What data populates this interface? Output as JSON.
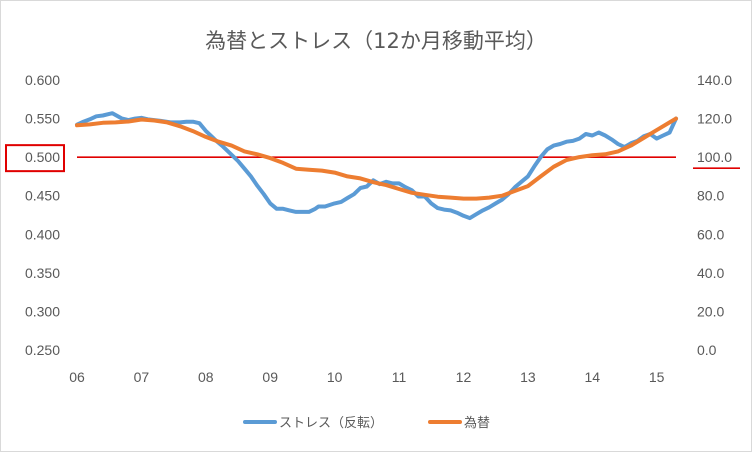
{
  "chart_data": {
    "type": "line",
    "title": "為替とストレス（12か月移動平均）",
    "x_tick_labels": [
      "06",
      "07",
      "08",
      "09",
      "10",
      "11",
      "12",
      "13",
      "14",
      "15"
    ],
    "x_range": [
      2006,
      2015.3
    ],
    "y_left": {
      "tick_labels": [
        "0.600",
        "0.550",
        "0.500",
        "0.450",
        "0.400",
        "0.350",
        "0.300",
        "0.250"
      ],
      "range": [
        0.25,
        0.6
      ],
      "highlighted_tick": "0.500"
    },
    "y_right": {
      "tick_labels": [
        "140.0",
        "120.0",
        "100.0",
        "80.0",
        "60.0",
        "40.0",
        "20.0",
        "0.0"
      ],
      "range": [
        0,
        140
      ],
      "highlighted_tick": "100.0"
    },
    "reference_line": {
      "value": 0.5,
      "axis": "left",
      "color": "#e00000"
    },
    "legend_position": "bottom",
    "grid": false,
    "series": [
      {
        "name": "ストレス（反転）",
        "axis": "left",
        "color": "#5b9bd5",
        "x": [
          2006.0,
          2006.1,
          2006.2,
          2006.3,
          2006.4,
          2006.5,
          2006.55,
          2006.7,
          2006.8,
          2006.9,
          2007.0,
          2007.1,
          2007.2,
          2007.3,
          2007.45,
          2007.6,
          2007.7,
          2007.8,
          2007.9,
          2008.0,
          2008.1,
          2008.15,
          2008.25,
          2008.4,
          2008.5,
          2008.6,
          2008.7,
          2008.8,
          2008.9,
          2009.0,
          2009.1,
          2009.2,
          2009.3,
          2009.4,
          2009.5,
          2009.6,
          2009.7,
          2009.75,
          2009.85,
          2010.0,
          2010.1,
          2010.2,
          2010.3,
          2010.4,
          2010.5,
          2010.6,
          2010.7,
          2010.8,
          2010.9,
          2011.0,
          2011.1,
          2011.2,
          2011.3,
          2011.4,
          2011.5,
          2011.6,
          2011.7,
          2011.8,
          2011.9,
          2012.0,
          2012.1,
          2012.2,
          2012.3,
          2012.4,
          2012.5,
          2012.6,
          2012.7,
          2012.8,
          2012.9,
          2013.0,
          2013.1,
          2013.2,
          2013.3,
          2013.4,
          2013.5,
          2013.6,
          2013.7,
          2013.8,
          2013.9,
          2014.0,
          2014.1,
          2014.2,
          2014.3,
          2014.4,
          2014.5,
          2014.6,
          2014.7,
          2014.8,
          2014.9,
          2015.0,
          2015.1,
          2015.2,
          2015.3
        ],
        "values": [
          0.542,
          0.546,
          0.549,
          0.553,
          0.554,
          0.556,
          0.557,
          0.55,
          0.548,
          0.55,
          0.551,
          0.549,
          0.548,
          0.547,
          0.545,
          0.545,
          0.546,
          0.546,
          0.544,
          0.534,
          0.526,
          0.522,
          0.515,
          0.503,
          0.495,
          0.485,
          0.475,
          0.463,
          0.452,
          0.44,
          0.433,
          0.433,
          0.431,
          0.429,
          0.429,
          0.429,
          0.433,
          0.436,
          0.436,
          0.44,
          0.442,
          0.447,
          0.452,
          0.46,
          0.462,
          0.47,
          0.465,
          0.468,
          0.466,
          0.466,
          0.461,
          0.457,
          0.449,
          0.449,
          0.44,
          0.434,
          0.432,
          0.431,
          0.428,
          0.424,
          0.421,
          0.426,
          0.431,
          0.435,
          0.44,
          0.445,
          0.452,
          0.461,
          0.468,
          0.475,
          0.488,
          0.5,
          0.51,
          0.515,
          0.517,
          0.52,
          0.521,
          0.524,
          0.53,
          0.528,
          0.532,
          0.528,
          0.523,
          0.517,
          0.513,
          0.518,
          0.521,
          0.527,
          0.53,
          0.524,
          0.528,
          0.532,
          0.55
        ]
      },
      {
        "name": "為替",
        "axis": "right",
        "color": "#ed7d31",
        "x": [
          2006.0,
          2006.2,
          2006.4,
          2006.6,
          2006.8,
          2007.0,
          2007.2,
          2007.4,
          2007.6,
          2007.8,
          2008.0,
          2008.2,
          2008.4,
          2008.6,
          2008.8,
          2009.0,
          2009.2,
          2009.4,
          2009.6,
          2009.8,
          2010.0,
          2010.2,
          2010.4,
          2010.6,
          2010.8,
          2011.0,
          2011.2,
          2011.4,
          2011.6,
          2011.8,
          2012.0,
          2012.2,
          2012.4,
          2012.6,
          2012.8,
          2013.0,
          2013.2,
          2013.4,
          2013.6,
          2013.8,
          2014.0,
          2014.2,
          2014.4,
          2014.6,
          2014.8,
          2015.0,
          2015.2,
          2015.3
        ],
        "values": [
          116.5,
          117.0,
          117.8,
          118.0,
          118.5,
          119.5,
          119.0,
          118.0,
          116.0,
          113.5,
          110.5,
          108.0,
          106.0,
          103.0,
          101.5,
          99.5,
          97.0,
          94.0,
          93.5,
          93.0,
          92.0,
          90.0,
          89.0,
          87.0,
          85.5,
          83.5,
          81.5,
          80.5,
          79.5,
          79.0,
          78.5,
          78.5,
          79.0,
          80.0,
          82.5,
          85.0,
          90.0,
          95.0,
          98.5,
          100.0,
          101.0,
          101.5,
          103.0,
          106.0,
          110.0,
          114.0,
          118.0,
          120.0
        ]
      }
    ]
  }
}
